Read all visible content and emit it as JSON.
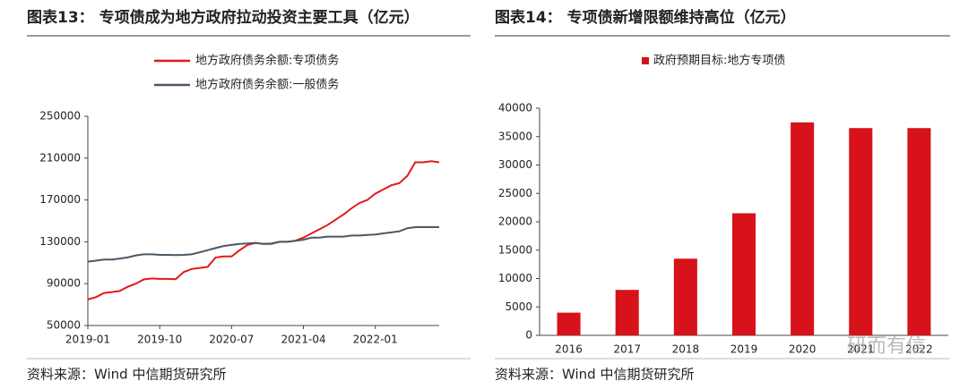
{
  "chart_data": [
    {
      "type": "line",
      "title": "图表13： 专项债成为地方政府拉动投资主要工具（亿元）",
      "source": "资料来源：Wind 中信期货研究所",
      "categories": [
        "2019-01",
        null,
        null,
        null,
        null,
        null,
        null,
        null,
        null,
        "2019-10",
        null,
        null,
        null,
        null,
        null,
        null,
        null,
        null,
        "2020-07",
        null,
        null,
        null,
        null,
        null,
        null,
        null,
        null,
        "2021-04",
        null,
        null,
        null,
        null,
        null,
        null,
        null,
        null,
        "2022-01",
        null,
        null,
        null,
        null,
        null,
        null,
        null,
        null
      ],
      "series": [
        {
          "name": "地方政府债务余额:专项债务",
          "color": "#e3191c",
          "values": [
            75000,
            77000,
            81000,
            82000,
            83000,
            87000,
            90000,
            94000,
            95000,
            94500,
            94500,
            94300,
            101000,
            104000,
            105000,
            106000,
            115000,
            116000,
            116000,
            122000,
            127000,
            129000,
            128000,
            128500,
            130000,
            130000,
            131000,
            134000,
            138000,
            142000,
            146000,
            151000,
            156000,
            162000,
            167000,
            170000,
            176000,
            180000,
            184000,
            186000,
            193000,
            206000,
            206000,
            207000,
            206000
          ]
        },
        {
          "name": "地方政府债务余额:一般债务",
          "color": "#4b5866",
          "values": [
            111000,
            112000,
            113000,
            113000,
            114000,
            115000,
            117000,
            118000,
            118000,
            117500,
            117500,
            117300,
            117500,
            118000,
            120000,
            122000,
            124000,
            126000,
            127000,
            128000,
            128500,
            129000,
            128000,
            128000,
            130000,
            130000,
            131000,
            132000,
            134000,
            134000,
            135000,
            135000,
            135000,
            136000,
            136000,
            136500,
            137000,
            138000,
            139000,
            140000,
            143000,
            144000,
            144000,
            144000,
            144000
          ]
        }
      ],
      "ylim": [
        50000,
        250000
      ],
      "yticks": [
        50000,
        90000,
        130000,
        170000,
        210000,
        250000
      ]
    },
    {
      "type": "bar",
      "title": "图表14： 专项债新增限额维持高位（亿元）",
      "source": "资料来源：Wind 中信期货研究所",
      "categories": [
        "2016",
        "2017",
        "2018",
        "2019",
        "2020",
        "2021",
        "2022"
      ],
      "series": [
        {
          "name": "政府预期目标:地方专项债",
          "color": "#d7121a",
          "values": [
            4000,
            8000,
            13500,
            21500,
            37500,
            36500,
            36500
          ]
        }
      ],
      "ylim": [
        0,
        40000
      ],
      "yticks": [
        0,
        5000,
        10000,
        15000,
        20000,
        25000,
        30000,
        35000,
        40000
      ],
      "watermark": "研而有信"
    }
  ]
}
